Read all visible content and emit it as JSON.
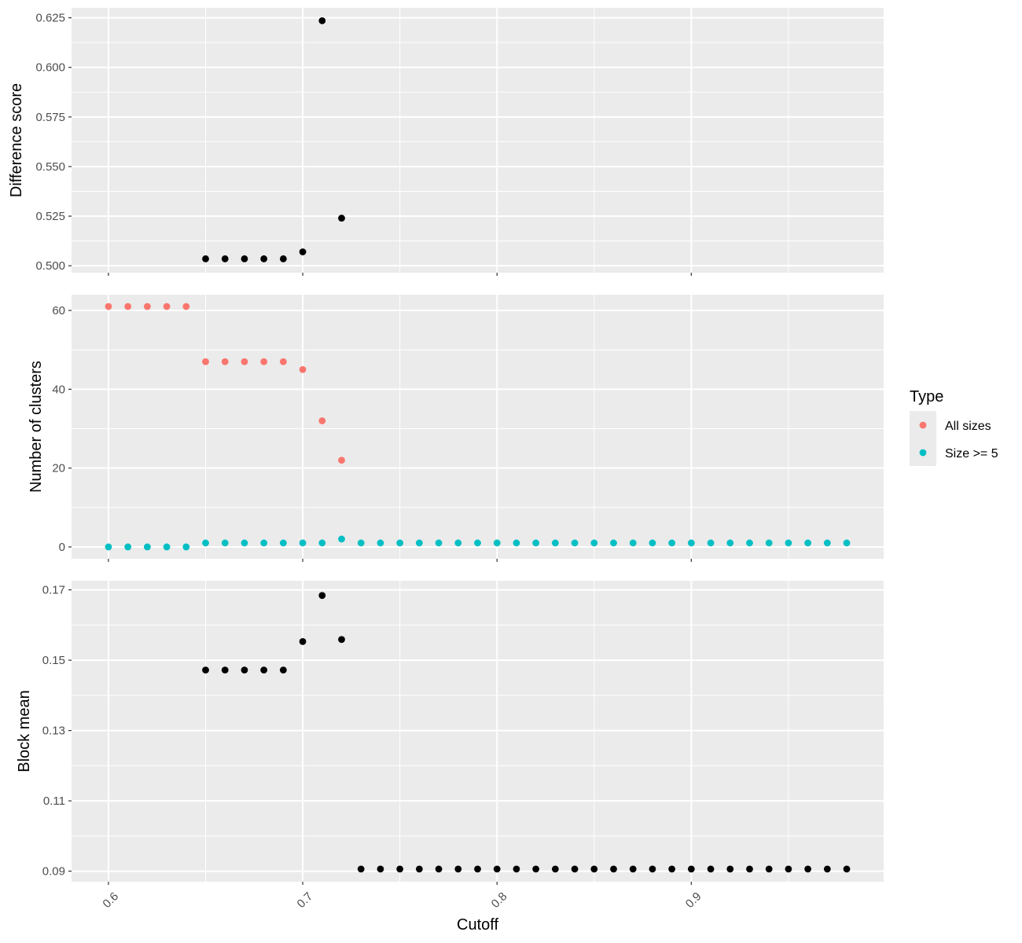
{
  "chart_data": {
    "type": "scatter",
    "xlabel": "Cutoff",
    "x_ticks": [
      0.6,
      0.7,
      0.8,
      0.9
    ],
    "x_tick_labels": [
      "0.6",
      "0.7",
      "0.8",
      "0.9"
    ],
    "xlim": [
      0.581,
      0.999
    ],
    "grid": true,
    "legend": {
      "title": "Type",
      "position": "right",
      "entries": [
        {
          "label": "All sizes",
          "color": "#F8766D"
        },
        {
          "label": "Size >= 5",
          "color": "#00BFC4"
        }
      ]
    },
    "panels": [
      {
        "ylabel": "Difference score",
        "ylim": [
          0.4965,
          0.63
        ],
        "y_ticks": [
          0.5,
          0.525,
          0.55,
          0.575,
          0.6,
          0.625
        ],
        "y_tick_labels": [
          "0.500",
          "0.525",
          "0.550",
          "0.575",
          "0.600",
          "0.625"
        ],
        "series": [
          {
            "color": "#000000",
            "points": [
              [
                0.65,
                0.5035
              ],
              [
                0.66,
                0.5035
              ],
              [
                0.67,
                0.5035
              ],
              [
                0.68,
                0.5035
              ],
              [
                0.69,
                0.5035
              ],
              [
                0.7,
                0.507
              ],
              [
                0.71,
                0.6235
              ],
              [
                0.72,
                0.524
              ]
            ]
          }
        ]
      },
      {
        "ylabel": "Number of clusters",
        "ylim": [
          -3,
          64
        ],
        "y_ticks": [
          0,
          20,
          40,
          60
        ],
        "y_tick_labels": [
          "0",
          "20",
          "40",
          "60"
        ],
        "series": [
          {
            "name": "All sizes",
            "color": "#F8766D",
            "points": [
              [
                0.6,
                61
              ],
              [
                0.61,
                61
              ],
              [
                0.62,
                61
              ],
              [
                0.63,
                61
              ],
              [
                0.64,
                61
              ],
              [
                0.65,
                47
              ],
              [
                0.66,
                47
              ],
              [
                0.67,
                47
              ],
              [
                0.68,
                47
              ],
              [
                0.69,
                47
              ],
              [
                0.7,
                45
              ],
              [
                0.71,
                32
              ],
              [
                0.72,
                22
              ]
            ]
          },
          {
            "name": "Size >= 5",
            "color": "#00BFC4",
            "points": [
              [
                0.6,
                0
              ],
              [
                0.61,
                0
              ],
              [
                0.62,
                0
              ],
              [
                0.63,
                0
              ],
              [
                0.64,
                0
              ],
              [
                0.65,
                1
              ],
              [
                0.66,
                1
              ],
              [
                0.67,
                1
              ],
              [
                0.68,
                1
              ],
              [
                0.69,
                1
              ],
              [
                0.7,
                1
              ],
              [
                0.71,
                1
              ],
              [
                0.72,
                2
              ],
              [
                0.73,
                1
              ],
              [
                0.74,
                1
              ],
              [
                0.75,
                1
              ],
              [
                0.76,
                1
              ],
              [
                0.77,
                1
              ],
              [
                0.78,
                1
              ],
              [
                0.79,
                1
              ],
              [
                0.8,
                1
              ],
              [
                0.81,
                1
              ],
              [
                0.82,
                1
              ],
              [
                0.83,
                1
              ],
              [
                0.84,
                1
              ],
              [
                0.85,
                1
              ],
              [
                0.86,
                1
              ],
              [
                0.87,
                1
              ],
              [
                0.88,
                1
              ],
              [
                0.89,
                1
              ],
              [
                0.9,
                1
              ],
              [
                0.91,
                1
              ],
              [
                0.92,
                1
              ],
              [
                0.93,
                1
              ],
              [
                0.94,
                1
              ],
              [
                0.95,
                1
              ],
              [
                0.96,
                1
              ],
              [
                0.97,
                1
              ],
              [
                0.98,
                1
              ]
            ]
          }
        ]
      },
      {
        "ylabel": "Block mean",
        "ylim": [
          0.087,
          0.1726
        ],
        "y_ticks": [
          0.09,
          0.11,
          0.13,
          0.15,
          0.17
        ],
        "y_tick_labels": [
          "0.09",
          "0.11",
          "0.13",
          "0.15",
          "0.17"
        ],
        "series": [
          {
            "color": "#000000",
            "points": [
              [
                0.65,
                0.1472
              ],
              [
                0.66,
                0.1472
              ],
              [
                0.67,
                0.1472
              ],
              [
                0.68,
                0.1472
              ],
              [
                0.69,
                0.1472
              ],
              [
                0.7,
                0.1553
              ],
              [
                0.71,
                0.1684
              ],
              [
                0.72,
                0.1559
              ],
              [
                0.73,
                0.0906
              ],
              [
                0.74,
                0.0906
              ],
              [
                0.75,
                0.0906
              ],
              [
                0.76,
                0.0906
              ],
              [
                0.77,
                0.0906
              ],
              [
                0.78,
                0.0906
              ],
              [
                0.79,
                0.0906
              ],
              [
                0.8,
                0.0906
              ],
              [
                0.81,
                0.0906
              ],
              [
                0.82,
                0.0906
              ],
              [
                0.83,
                0.0906
              ],
              [
                0.84,
                0.0906
              ],
              [
                0.85,
                0.0906
              ],
              [
                0.86,
                0.0906
              ],
              [
                0.87,
                0.0906
              ],
              [
                0.88,
                0.0906
              ],
              [
                0.89,
                0.0906
              ],
              [
                0.9,
                0.0906
              ],
              [
                0.91,
                0.0906
              ],
              [
                0.92,
                0.0906
              ],
              [
                0.93,
                0.0906
              ],
              [
                0.94,
                0.0906
              ],
              [
                0.95,
                0.0906
              ],
              [
                0.96,
                0.0906
              ],
              [
                0.97,
                0.0906
              ],
              [
                0.98,
                0.0906
              ]
            ]
          }
        ]
      }
    ]
  }
}
